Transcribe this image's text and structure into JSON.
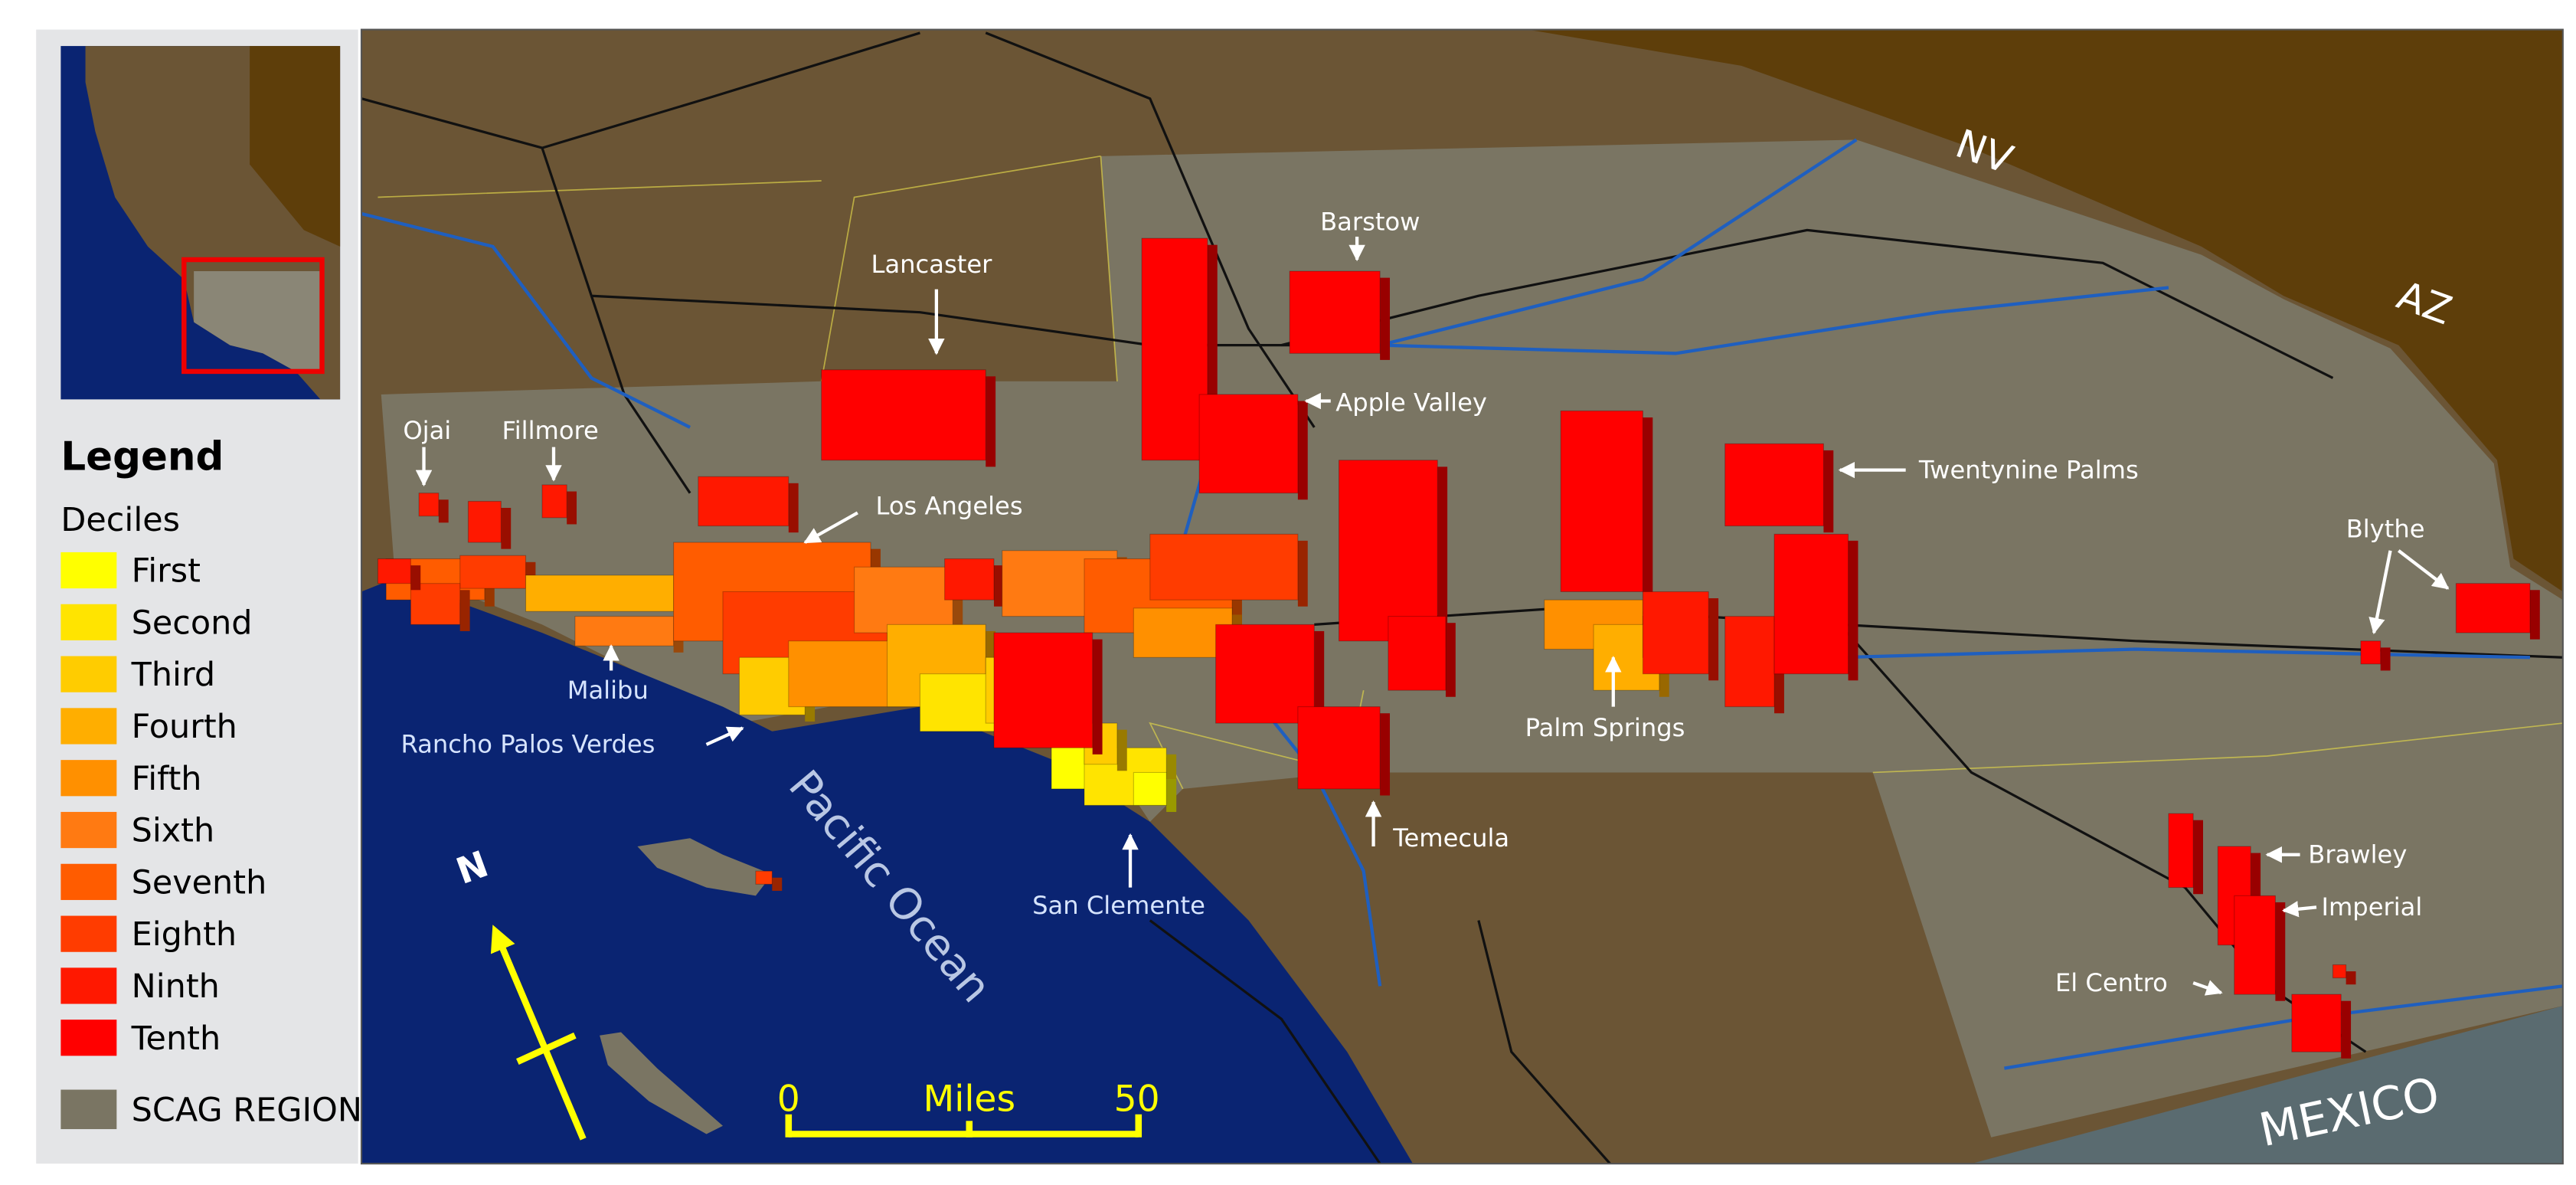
{
  "legend": {
    "title": "Legend",
    "subtitle": "Deciles",
    "deciles": [
      {
        "label": "First",
        "color": "#ffff00"
      },
      {
        "label": "Second",
        "color": "#ffe400"
      },
      {
        "label": "Third",
        "color": "#ffcc00"
      },
      {
        "label": "Fourth",
        "color": "#ffae00"
      },
      {
        "label": "Fifth",
        "color": "#ff9000"
      },
      {
        "label": "Sixth",
        "color": "#ff7a12"
      },
      {
        "label": "Seventh",
        "color": "#ff5c00"
      },
      {
        "label": "Eighth",
        "color": "#ff3c00"
      },
      {
        "label": "Ninth",
        "color": "#ff1800"
      },
      {
        "label": "Tenth",
        "color": "#ff0000"
      }
    ],
    "region": {
      "label": "SCAG REGION",
      "color": "#7a7563"
    }
  },
  "places": [
    {
      "label": "Lancaster"
    },
    {
      "label": "Barstow"
    },
    {
      "label": "Apple Valley"
    },
    {
      "label": "Ojai"
    },
    {
      "label": "Fillmore"
    },
    {
      "label": "Los Angeles"
    },
    {
      "label": "Twentynine Palms"
    },
    {
      "label": "Blythe"
    },
    {
      "label": "Malibu"
    },
    {
      "label": "Rancho Palos Verdes"
    },
    {
      "label": "Palm Springs"
    },
    {
      "label": "Temecula"
    },
    {
      "label": "San Clemente"
    },
    {
      "label": "Brawley"
    },
    {
      "label": "Imperial"
    },
    {
      "label": "El Centro"
    }
  ],
  "areas": [
    {
      "label": "NV"
    },
    {
      "label": "AZ"
    },
    {
      "label": "MEXICO"
    },
    {
      "label": "Pacific Ocean"
    }
  ],
  "north": "N",
  "scale_bar": {
    "ticks": [
      0,
      50
    ],
    "unit": "Miles"
  }
}
